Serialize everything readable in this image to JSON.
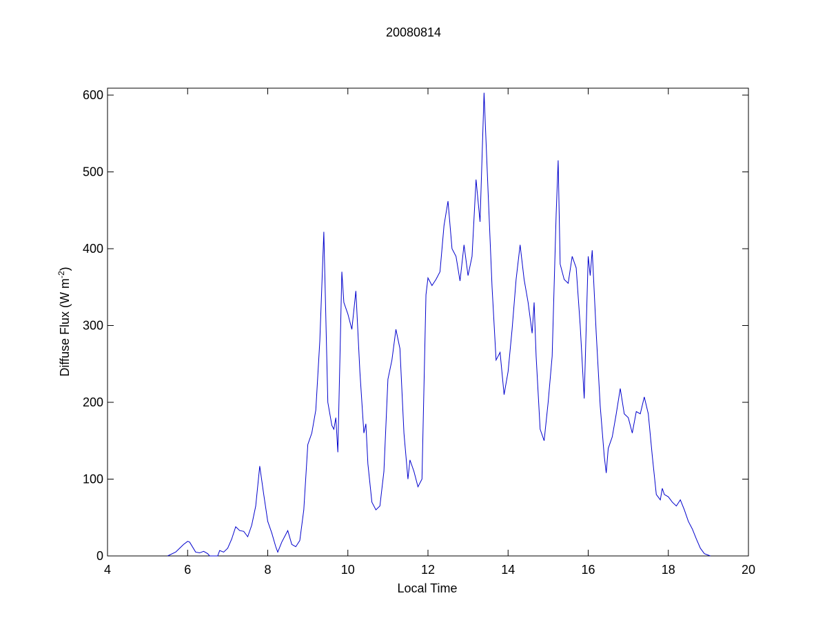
{
  "chart_data": {
    "type": "line",
    "title": "20080814",
    "xlabel": "Local Time",
    "ylabel_parts": [
      "Diffuse Flux (W m",
      "-2",
      ")"
    ],
    "xlim": [
      4,
      20
    ],
    "xticks": [
      4,
      6,
      8,
      10,
      12,
      14,
      16,
      18,
      20
    ],
    "ylim": [
      0,
      609
    ],
    "yticks": [
      0,
      100,
      200,
      300,
      400,
      500,
      600
    ],
    "series": [
      {
        "color": "#0000cc",
        "x": [
          5.5,
          5.7,
          5.8,
          5.9,
          6.0,
          6.05,
          6.2,
          6.3,
          6.4,
          6.5,
          6.55,
          6.75,
          6.8,
          6.9,
          7.0,
          7.1,
          7.2,
          7.3,
          7.4,
          7.5,
          7.6,
          7.7,
          7.8,
          7.9,
          8.0,
          8.1,
          8.2,
          8.25,
          8.35,
          8.5,
          8.6,
          8.7,
          8.8,
          8.9,
          9.0,
          9.1,
          9.2,
          9.3,
          9.4,
          9.5,
          9.6,
          9.65,
          9.7,
          9.75,
          9.85,
          9.9,
          10.0,
          10.1,
          10.2,
          10.3,
          10.4,
          10.45,
          10.5,
          10.6,
          10.7,
          10.8,
          10.9,
          11.0,
          11.1,
          11.2,
          11.3,
          11.4,
          11.5,
          11.55,
          11.65,
          11.75,
          11.85,
          11.95,
          12.0,
          12.1,
          12.2,
          12.3,
          12.4,
          12.5,
          12.6,
          12.7,
          12.8,
          12.9,
          13.0,
          13.1,
          13.2,
          13.3,
          13.4,
          13.5,
          13.6,
          13.7,
          13.8,
          13.9,
          14.0,
          14.1,
          14.2,
          14.3,
          14.4,
          14.5,
          14.6,
          14.65,
          14.7,
          14.8,
          14.9,
          15.0,
          15.1,
          15.2,
          15.25,
          15.3,
          15.4,
          15.5,
          15.6,
          15.7,
          15.8,
          15.9,
          16.0,
          16.05,
          16.1,
          16.2,
          16.3,
          16.4,
          16.45,
          16.5,
          16.6,
          16.7,
          16.8,
          16.9,
          17.0,
          17.1,
          17.2,
          17.3,
          17.4,
          17.5,
          17.6,
          17.7,
          17.8,
          17.85,
          17.9,
          18.0,
          18.1,
          18.2,
          18.3,
          18.4,
          18.5,
          18.6,
          18.7,
          18.8,
          18.9,
          19.05
        ],
        "values": [
          0,
          5,
          10,
          15,
          19,
          18,
          5,
          4,
          6,
          3,
          0,
          0,
          7,
          5,
          10,
          22,
          38,
          33,
          32,
          25,
          40,
          65,
          117,
          80,
          45,
          30,
          12,
          5,
          18,
          33,
          15,
          12,
          20,
          60,
          145,
          160,
          190,
          280,
          422,
          200,
          170,
          165,
          180,
          135,
          370,
          330,
          315,
          295,
          345,
          240,
          160,
          172,
          120,
          70,
          60,
          65,
          110,
          230,
          255,
          295,
          270,
          160,
          100,
          125,
          110,
          90,
          100,
          340,
          362,
          352,
          360,
          370,
          430,
          462,
          400,
          390,
          358,
          405,
          365,
          390,
          490,
          435,
          603,
          475,
          350,
          255,
          265,
          210,
          240,
          295,
          360,
          405,
          360,
          330,
          290,
          330,
          260,
          165,
          150,
          200,
          260,
          445,
          515,
          380,
          360,
          355,
          390,
          375,
          300,
          205,
          390,
          365,
          398,
          290,
          195,
          130,
          108,
          140,
          155,
          185,
          218,
          185,
          180,
          160,
          188,
          185,
          207,
          185,
          130,
          80,
          73,
          88,
          80,
          77,
          70,
          65,
          73,
          60,
          45,
          35,
          22,
          10,
          3,
          0
        ]
      }
    ]
  }
}
